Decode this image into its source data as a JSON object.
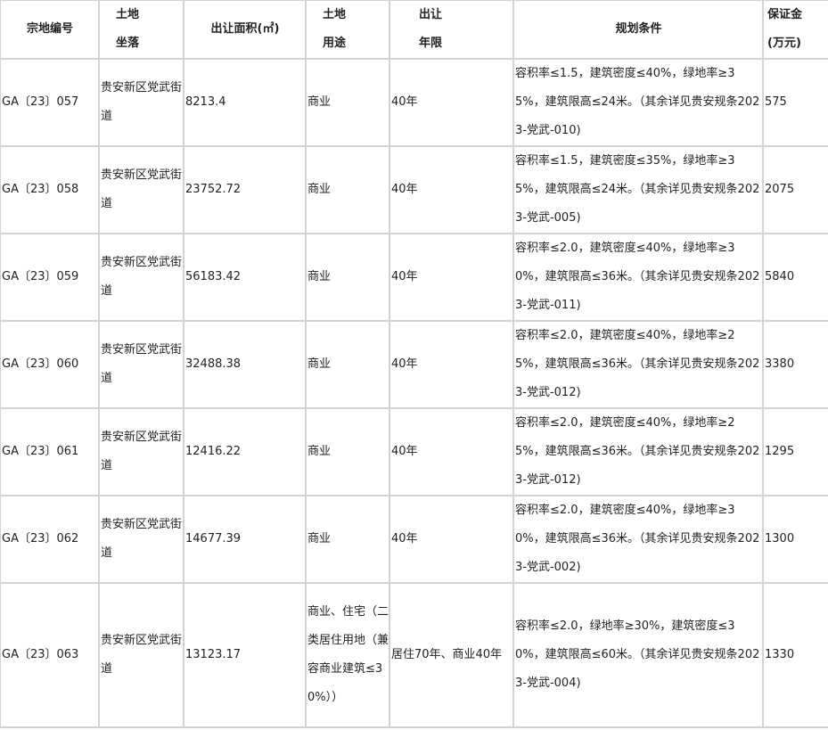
{
  "headers": {
    "id": "宗地编号",
    "location_1": "土地",
    "location_2": "坐落",
    "area": "出让面积(㎡)",
    "use_1": "土地",
    "use_2": "用途",
    "term_1": "出让",
    "term_2": "年限",
    "planning": "规划条件",
    "deposit_1": "保证金",
    "deposit_2": "(万元)"
  },
  "rows": [
    {
      "id": "GA〔23〕057",
      "location": "贵安新区党武街道",
      "area": "8213.4",
      "use": "商业",
      "term": "40年",
      "planning": "容积率≤1.5，建筑密度≤40%，绿地率≥35%，建筑限高≤24米。（其余详见贵安规条2023-党武-010)",
      "deposit": "575"
    },
    {
      "id": "GA〔23〕058",
      "location": "贵安新区党武街道",
      "area": "23752.72",
      "use": "商业",
      "term": "40年",
      "planning": "容积率≤1.5，建筑密度≤35%，绿地率≥35%，建筑限高≤24米。（其余详见贵安规条2023-党武-005)",
      "deposit": "2075"
    },
    {
      "id": "GA〔23〕059",
      "location": "贵安新区党武街道",
      "area": "56183.42",
      "use": "商业",
      "term": "40年",
      "planning": "容积率≤2.0，建筑密度≤40%，绿地率≥30%，建筑限高≤36米。（其余详见贵安规条2023-党武-011)",
      "deposit": "5840"
    },
    {
      "id": "GA〔23〕060",
      "location": "贵安新区党武街道",
      "area": "32488.38",
      "use": "商业",
      "term": "40年",
      "planning": "容积率≤2.0，建筑密度≤40%，绿地率≥25%，建筑限高≤36米。（其余详见贵安规条2023-党武-012)",
      "deposit": "3380"
    },
    {
      "id": "GA〔23〕061",
      "location": "贵安新区党武街道",
      "area": "12416.22",
      "use": "商业",
      "term": "40年",
      "planning": "容积率≤2.0，建筑密度≤40%，绿地率≥25%，建筑限高≤36米。（其余详见贵安规条2023-党武-012)",
      "deposit": "1295"
    },
    {
      "id": "GA〔23〕062",
      "location": "贵安新区党武街道",
      "area": "14677.39",
      "use": "商业",
      "term": "40年",
      "planning": "容积率≤2.0，建筑密度≤40%，绿地率≥30%，建筑限高≤36米。（其余详见贵安规条2023-党武-002)",
      "deposit": "1300"
    },
    {
      "id": "GA〔23〕063",
      "location": "贵安新区党武街道",
      "area": "13123.17",
      "use": "商业、住宅（二类居住用地（兼容商业建筑≤30%））",
      "term": "居住70年、商业40年",
      "planning": "容积率≤2.0，绿地率≥30%，建筑密度≤30%，建筑限高≤60米。（其余详见贵安规条2023-党武-004)",
      "deposit": "1330"
    }
  ]
}
